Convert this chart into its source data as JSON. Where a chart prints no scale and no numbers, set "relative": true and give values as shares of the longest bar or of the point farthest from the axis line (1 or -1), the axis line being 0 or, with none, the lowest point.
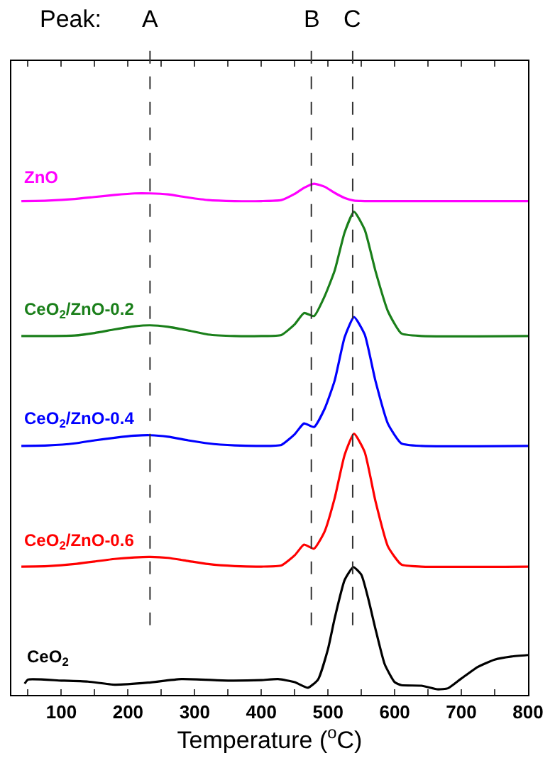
{
  "chart_data": {
    "type": "line",
    "relative": true,
    "xlabel": "Temperature ($^{o}$C)",
    "xlim": [
      25,
      800
    ],
    "xticks": [
      {
        "value": 50,
        "label": null
      },
      100,
      {
        "value": 150,
        "label": null
      },
      200,
      {
        "value": 250,
        "label": null
      },
      300,
      {
        "value": 350,
        "label": null
      },
      400,
      {
        "value": 450,
        "label": null
      },
      500,
      {
        "value": 550,
        "label": null
      },
      600,
      {
        "value": 650,
        "label": null
      },
      700,
      {
        "value": 750,
        "label": null
      },
      800
    ],
    "tick_labels": "x",
    "legend": false,
    "marker": "none",
    "line_style": "solid",
    "annotations": [
      "Peak:"
    ],
    "ref_lines": [
      {
        "axis": "x",
        "value": 233,
        "label": "A",
        "color": "#333333",
        "line_style": "dashed"
      },
      {
        "axis": "x",
        "value": 475,
        "label": "B",
        "color": "#333333",
        "line_style": "dashed"
      },
      {
        "axis": "x",
        "value": 537,
        "label": "C",
        "color": "#333333",
        "line_style": "dashed"
      }
    ],
    "series": [
      {
        "name": "ZnO",
        "color": "#ff00ff",
        "x": [
          40,
          80,
          120,
          150,
          180,
          210,
          233,
          260,
          290,
          320,
          360,
          400,
          430,
          450,
          464,
          479,
          495,
          510,
          525,
          539,
          555,
          800
        ],
        "values": [
          0.966,
          0.967,
          0.97,
          0.974,
          0.978,
          0.981,
          0.981,
          0.979,
          0.973,
          0.968,
          0.966,
          0.966,
          0.968,
          0.98,
          0.992,
          1.0,
          0.994,
          0.982,
          0.972,
          0.967,
          0.966,
          0.966
        ]
      },
      {
        "name": "CeO$_{2}$/ZnO-0.2",
        "color": "#1a7f1a",
        "x": [
          40,
          80,
          120,
          150,
          180,
          210,
          233,
          260,
          290,
          320,
          360,
          400,
          430,
          450,
          464,
          479,
          495,
          510,
          525,
          539,
          555,
          571,
          590,
          610,
          640,
          800
        ],
        "values": [
          0.702,
          0.702,
          0.703,
          0.708,
          0.715,
          0.721,
          0.723,
          0.72,
          0.713,
          0.705,
          0.702,
          0.702,
          0.704,
          0.725,
          0.747,
          0.741,
          0.78,
          0.83,
          0.905,
          0.945,
          0.91,
          0.83,
          0.75,
          0.707,
          0.702,
          0.702
        ]
      },
      {
        "name": "CeO$_{2}$/ZnO-0.4",
        "color": "#0000ff",
        "x": [
          40,
          80,
          120,
          150,
          180,
          210,
          233,
          260,
          290,
          320,
          360,
          400,
          430,
          450,
          464,
          479,
          495,
          510,
          525,
          539,
          555,
          571,
          590,
          610,
          640,
          800
        ],
        "values": [
          0.487,
          0.488,
          0.492,
          0.498,
          0.503,
          0.507,
          0.508,
          0.505,
          0.498,
          0.492,
          0.488,
          0.487,
          0.489,
          0.51,
          0.531,
          0.524,
          0.56,
          0.615,
          0.7,
          0.739,
          0.705,
          0.615,
          0.53,
          0.492,
          0.487,
          0.487
        ]
      },
      {
        "name": "CeO$_{2}$/ZnO-0.6",
        "color": "#ff0000",
        "x": [
          40,
          80,
          120,
          150,
          180,
          210,
          233,
          260,
          290,
          320,
          360,
          400,
          430,
          450,
          464,
          479,
          495,
          510,
          525,
          539,
          555,
          571,
          590,
          610,
          640,
          800
        ],
        "values": [
          0.251,
          0.252,
          0.256,
          0.261,
          0.266,
          0.269,
          0.27,
          0.268,
          0.262,
          0.256,
          0.252,
          0.251,
          0.253,
          0.273,
          0.294,
          0.286,
          0.32,
          0.385,
          0.47,
          0.511,
          0.475,
          0.38,
          0.29,
          0.255,
          0.251,
          0.251
        ]
      },
      {
        "name": "CeO$_{2}$",
        "color": "#000000",
        "x": [
          45,
          50,
          100,
          140,
          180,
          230,
          280,
          350,
          400,
          425,
          450,
          470,
          485,
          500,
          510,
          525,
          538,
          550,
          560,
          571,
          585,
          600,
          610,
          640,
          665,
          680,
          700,
          725,
          750,
          775,
          800
        ],
        "values": [
          0.022,
          0.03,
          0.028,
          0.026,
          0.02,
          0.024,
          0.031,
          0.028,
          0.029,
          0.031,
          0.025,
          0.014,
          0.03,
          0.09,
          0.15,
          0.225,
          0.25,
          0.235,
          0.19,
          0.13,
          0.06,
          0.025,
          0.019,
          0.018,
          0.011,
          0.013,
          0.032,
          0.055,
          0.069,
          0.075,
          0.078
        ]
      }
    ]
  }
}
